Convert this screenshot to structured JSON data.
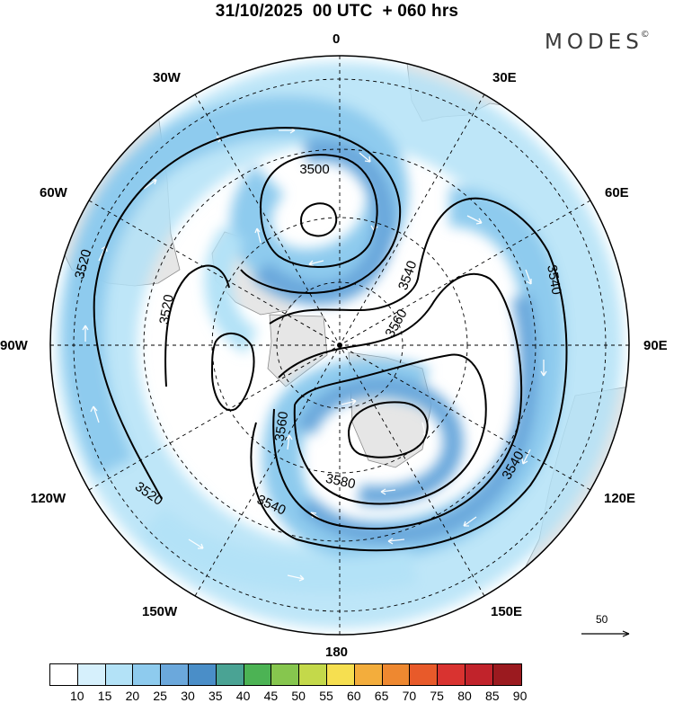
{
  "header": {
    "title": "31/10/2025  00 UTC  + 060 hrs",
    "brand": "MODES",
    "brand_mark": "©"
  },
  "map": {
    "projection": "polar-stereographic",
    "longitude_labels": {
      "top": "0",
      "bottom": "180",
      "left": "90W",
      "right": "90E",
      "upper_left_1": "30W",
      "upper_left_2": "60W",
      "upper_right_1": "30E",
      "upper_right_2": "60E",
      "lower_left_1": "120W",
      "lower_left_2": "150W",
      "lower_right_1": "120E",
      "lower_right_2": "150E"
    },
    "contours": {
      "c3500": "3500",
      "c3520_left": "3520",
      "c3520_inner": "3520",
      "c3520_lower": "3520",
      "c3540_right": "3540",
      "c3540_mid": "3540",
      "c3540_lowright": "3540",
      "c3540_lower": "3540",
      "c3560_mid": "3560",
      "c3560_lower": "3560",
      "c3580": "3580"
    },
    "reference_vector": "50"
  },
  "colorbar": {
    "ticks": [
      "10",
      "15",
      "20",
      "25",
      "30",
      "35",
      "40",
      "45",
      "50",
      "55",
      "60",
      "65",
      "70",
      "75",
      "80",
      "85",
      "90"
    ],
    "colors": [
      "#ffffff",
      "#d6f0fc",
      "#b3e2f7",
      "#8ecbee",
      "#6ba8dc",
      "#4a8ec8",
      "#4aa394",
      "#4cb354",
      "#86c64e",
      "#c4d94a",
      "#f6df50",
      "#f3ad3c",
      "#ee8830",
      "#e85a2a",
      "#d93330",
      "#c1232b",
      "#9b1a1f"
    ]
  }
}
